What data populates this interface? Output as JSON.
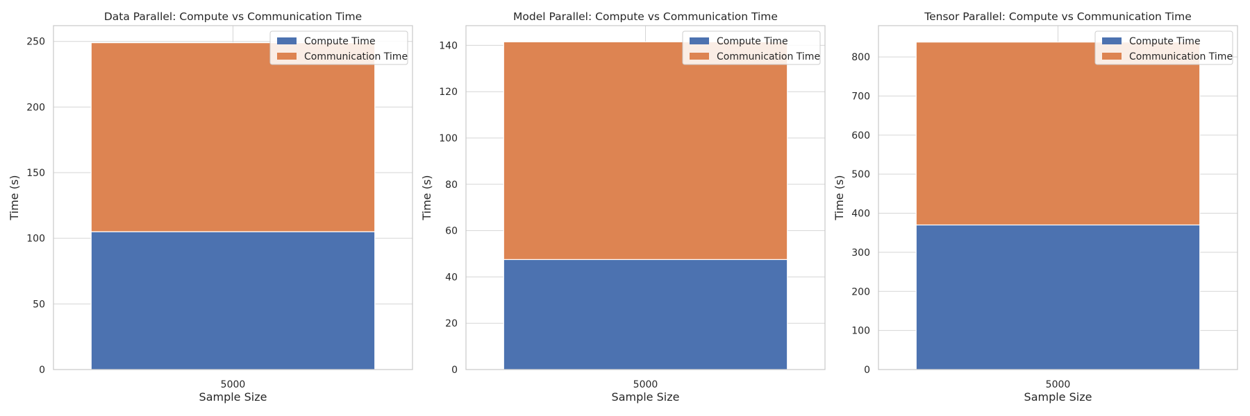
{
  "chart_data": [
    {
      "type": "bar",
      "stacked": true,
      "title": "Data Parallel: Compute vs Communication Time",
      "xlabel": "Sample Size",
      "ylabel": "Time (s)",
      "categories": [
        "5000"
      ],
      "ylim": [
        0,
        262
      ],
      "yticks": [
        0,
        50,
        100,
        150,
        200,
        250
      ],
      "grid": true,
      "legend": "top-right",
      "series": [
        {
          "name": "Compute Time",
          "values": [
            105
          ],
          "color": "#4c72b0"
        },
        {
          "name": "Communication Time",
          "values": [
            144
          ],
          "color": "#dd8452"
        }
      ]
    },
    {
      "type": "bar",
      "stacked": true,
      "title": "Model Parallel: Compute vs Communication Time",
      "xlabel": "Sample Size",
      "ylabel": "Time (s)",
      "categories": [
        "5000"
      ],
      "ylim": [
        0,
        148.5
      ],
      "yticks": [
        0,
        20,
        40,
        60,
        80,
        100,
        120,
        140
      ],
      "grid": true,
      "legend": "top-right",
      "series": [
        {
          "name": "Compute Time",
          "values": [
            47.5
          ],
          "color": "#4c72b0"
        },
        {
          "name": "Communication Time",
          "values": [
            94
          ],
          "color": "#dd8452"
        }
      ]
    },
    {
      "type": "bar",
      "stacked": true,
      "title": "Tensor Parallel: Compute vs Communication Time",
      "xlabel": "Sample Size",
      "ylabel": "Time (s)",
      "categories": [
        "5000"
      ],
      "ylim": [
        0,
        880
      ],
      "yticks": [
        0,
        100,
        200,
        300,
        400,
        500,
        600,
        700,
        800
      ],
      "grid": true,
      "legend": "top-right",
      "series": [
        {
          "name": "Compute Time",
          "values": [
            370
          ],
          "color": "#4c72b0"
        },
        {
          "name": "Communication Time",
          "values": [
            468
          ],
          "color": "#dd8452"
        }
      ]
    }
  ]
}
